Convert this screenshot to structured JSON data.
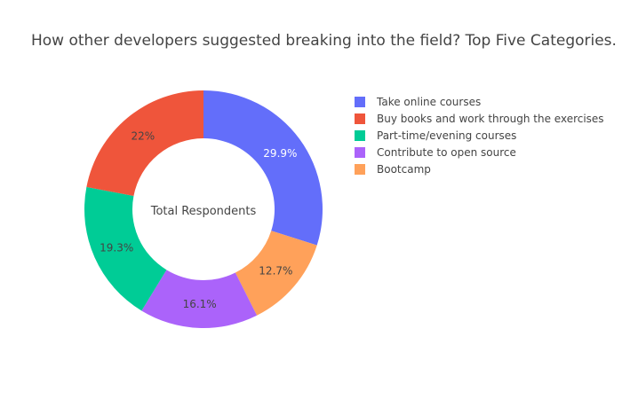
{
  "chart_data": {
    "type": "pie",
    "hole": true,
    "title": "How other developers suggested breaking into the field? Top Five Categories.",
    "center_label": "Total Respondents",
    "slices": [
      {
        "name": "Take online courses",
        "value": 29.9,
        "label": "29.9%",
        "color": "#636efa",
        "label_color": "#ffffff"
      },
      {
        "name": "Bootcamp",
        "value": 12.7,
        "label": "12.7%",
        "color": "#ffa15a",
        "label_color": "#444444"
      },
      {
        "name": "Contribute to open source",
        "value": 16.1,
        "label": "16.1%",
        "color": "#ab63fa",
        "label_color": "#444444"
      },
      {
        "name": "Part-time/evening courses",
        "value": 19.3,
        "label": "19.3%",
        "color": "#00cc96",
        "label_color": "#444444"
      },
      {
        "name": "Buy books and work through the exercises",
        "value": 22.0,
        "label": "22%",
        "color": "#ef553b",
        "label_color": "#444444"
      }
    ],
    "legend": [
      {
        "name": "Take online courses",
        "color": "#636efa"
      },
      {
        "name": "Buy books and work through the exercises",
        "color": "#ef553b"
      },
      {
        "name": "Part-time/evening courses",
        "color": "#00cc96"
      },
      {
        "name": "Contribute to open source",
        "color": "#ab63fa"
      },
      {
        "name": "Bootcamp",
        "color": "#ffa15a"
      }
    ],
    "legend_position": "right",
    "start_position": "top",
    "direction": "clockwise"
  }
}
